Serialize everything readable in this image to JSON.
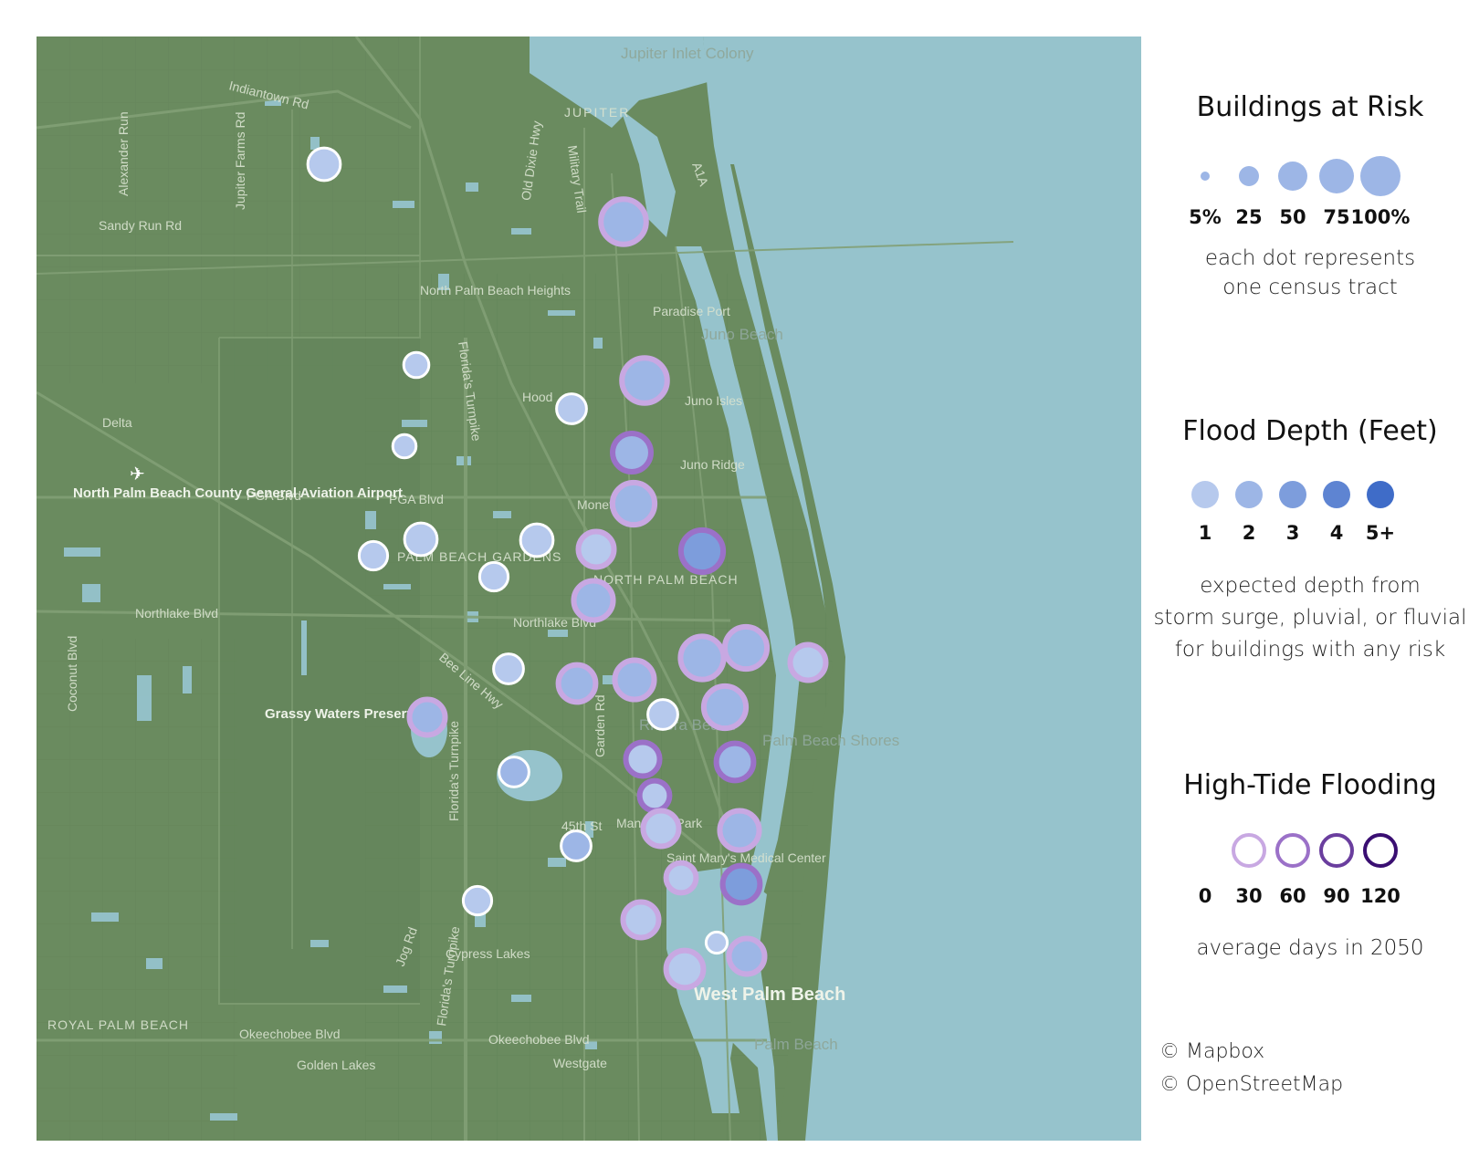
{
  "map": {
    "colors": {
      "land": "#6a8b5f",
      "water": "#96c3cc",
      "road": "#5b7a52",
      "major_road": "#82a076"
    },
    "place_labels": [
      "Jupiter Inlet Colony",
      "JUPITER",
      "North Palm Beach Heights",
      "Paradise Port",
      "Juno Beach",
      "Juno Isles",
      "Juno Ridge",
      "Hood",
      "Delta",
      "North Palm Beach County General Aviation Airport",
      "PALM BEACH GARDENS",
      "NORTH PALM BEACH",
      "Grassy Waters Preserve",
      "Riviera Beach",
      "Palm Beach Shores",
      "Mangonia Park",
      "Saint Mary's Medical Center",
      "West Palm Beach",
      "Palm Beach",
      "Cypress Lakes",
      "ROYAL PALM BEACH",
      "Golden Lakes",
      "Westgate",
      "Monet"
    ],
    "road_labels": [
      "Indiantown Rd",
      "Alexander Run",
      "Jupiter Farms Rd",
      "Sandy Run Rd",
      "Military Trail",
      "Old Dixie Hwy",
      "A1A",
      "Florida's Turnpike",
      "PGA Blvd",
      "Northlake Blvd",
      "Coconut Blvd",
      "Bee Line Hwy",
      "Garden Rd",
      "45th St",
      "Jog Rd",
      "Okeechobee Blvd"
    ],
    "dots": [
      {
        "id": "t1",
        "size": 20,
        "depth": 1,
        "tide": 0
      },
      {
        "id": "t2",
        "size": 45,
        "depth": 2,
        "tide": 30
      },
      {
        "id": "t3",
        "size": 10,
        "depth": 1,
        "tide": 0
      },
      {
        "id": "t4",
        "size": 45,
        "depth": 2,
        "tide": 30
      },
      {
        "id": "t5",
        "size": 16,
        "depth": 1,
        "tide": 0
      },
      {
        "id": "t6",
        "size": 8,
        "depth": 1,
        "tide": 0
      },
      {
        "id": "t7",
        "size": 30,
        "depth": 2,
        "tide": 60
      },
      {
        "id": "t8",
        "size": 38,
        "depth": 2,
        "tide": 30
      },
      {
        "id": "t9",
        "size": 20,
        "depth": 1,
        "tide": 0
      },
      {
        "id": "t10",
        "size": 20,
        "depth": 1,
        "tide": 0
      },
      {
        "id": "t11",
        "size": 14,
        "depth": 1,
        "tide": 0
      },
      {
        "id": "t12",
        "size": 14,
        "depth": 1,
        "tide": 0
      },
      {
        "id": "t13",
        "size": 25,
        "depth": 1,
        "tide": 30
      },
      {
        "id": "t14",
        "size": 38,
        "depth": 3,
        "tide": 60
      },
      {
        "id": "t15",
        "size": 32,
        "depth": 2,
        "tide": 30
      },
      {
        "id": "t16",
        "size": 16,
        "depth": 1,
        "tide": 0
      },
      {
        "id": "t17",
        "size": 28,
        "depth": 2,
        "tide": 30
      },
      {
        "id": "t18",
        "size": 32,
        "depth": 2,
        "tide": 30
      },
      {
        "id": "t19",
        "size": 40,
        "depth": 2,
        "tide": 30
      },
      {
        "id": "t20",
        "size": 38,
        "depth": 2,
        "tide": 30
      },
      {
        "id": "t21",
        "size": 25,
        "depth": 1,
        "tide": 30
      },
      {
        "id": "t22",
        "size": 25,
        "depth": 2,
        "tide": 30
      },
      {
        "id": "t23",
        "size": 16,
        "depth": 1,
        "tide": 0
      },
      {
        "id": "t24",
        "size": 16,
        "depth": 2,
        "tide": 0
      },
      {
        "id": "t25",
        "size": 38,
        "depth": 2,
        "tide": 30
      },
      {
        "id": "t26",
        "size": 22,
        "depth": 1,
        "tide": 60
      },
      {
        "id": "t27",
        "size": 28,
        "depth": 2,
        "tide": 60
      },
      {
        "id": "t28",
        "size": 16,
        "depth": 2,
        "tide": 0
      },
      {
        "id": "t29",
        "size": 16,
        "depth": 1,
        "tide": 60
      },
      {
        "id": "t30",
        "size": 25,
        "depth": 1,
        "tide": 30
      },
      {
        "id": "t31",
        "size": 32,
        "depth": 2,
        "tide": 30
      },
      {
        "id": "t32",
        "size": 16,
        "depth": 1,
        "tide": 30
      },
      {
        "id": "t33",
        "size": 28,
        "depth": 3,
        "tide": 60
      },
      {
        "id": "t34",
        "size": 14,
        "depth": 1,
        "tide": 0
      },
      {
        "id": "t35",
        "size": 25,
        "depth": 1,
        "tide": 30
      },
      {
        "id": "t36",
        "size": 6,
        "depth": 1,
        "tide": 0
      },
      {
        "id": "t37",
        "size": 25,
        "depth": 2,
        "tide": 30
      },
      {
        "id": "t38",
        "size": 28,
        "depth": 1,
        "tide": 30
      }
    ]
  },
  "legend": {
    "size": {
      "title": "Buildings at Risk",
      "items": [
        {
          "label": "5%",
          "value": 5
        },
        {
          "label": "25",
          "value": 25
        },
        {
          "label": "50",
          "value": 50
        },
        {
          "label": "75",
          "value": 75
        },
        {
          "label": "100%",
          "value": 100
        }
      ],
      "desc1": "each dot represents",
      "desc2": "one census tract"
    },
    "depth": {
      "title": "Flood Depth (Feet)",
      "items": [
        {
          "label": "1",
          "color": "#b6c9ed"
        },
        {
          "label": "2",
          "color": "#9db6e6"
        },
        {
          "label": "3",
          "color": "#7d9ddc"
        },
        {
          "label": "4",
          "color": "#5e84d2"
        },
        {
          "label": "5+",
          "color": "#3f6cc8"
        }
      ],
      "desc1": "expected depth from",
      "desc2": "storm surge, pluvial, or fluvial",
      "desc3": "for buildings with any risk"
    },
    "tide": {
      "title": "High-Tide Flooding",
      "items": [
        {
          "label": "0",
          "color": "#ffffff"
        },
        {
          "label": "30",
          "color": "#c8a8e2"
        },
        {
          "label": "60",
          "color": "#9b71c8"
        },
        {
          "label": "90",
          "color": "#6a3e9e"
        },
        {
          "label": "120",
          "color": "#3a0f72"
        }
      ],
      "desc": "average days in 2050"
    },
    "credits": [
      "© Mapbox",
      "© OpenStreetMap"
    ]
  }
}
